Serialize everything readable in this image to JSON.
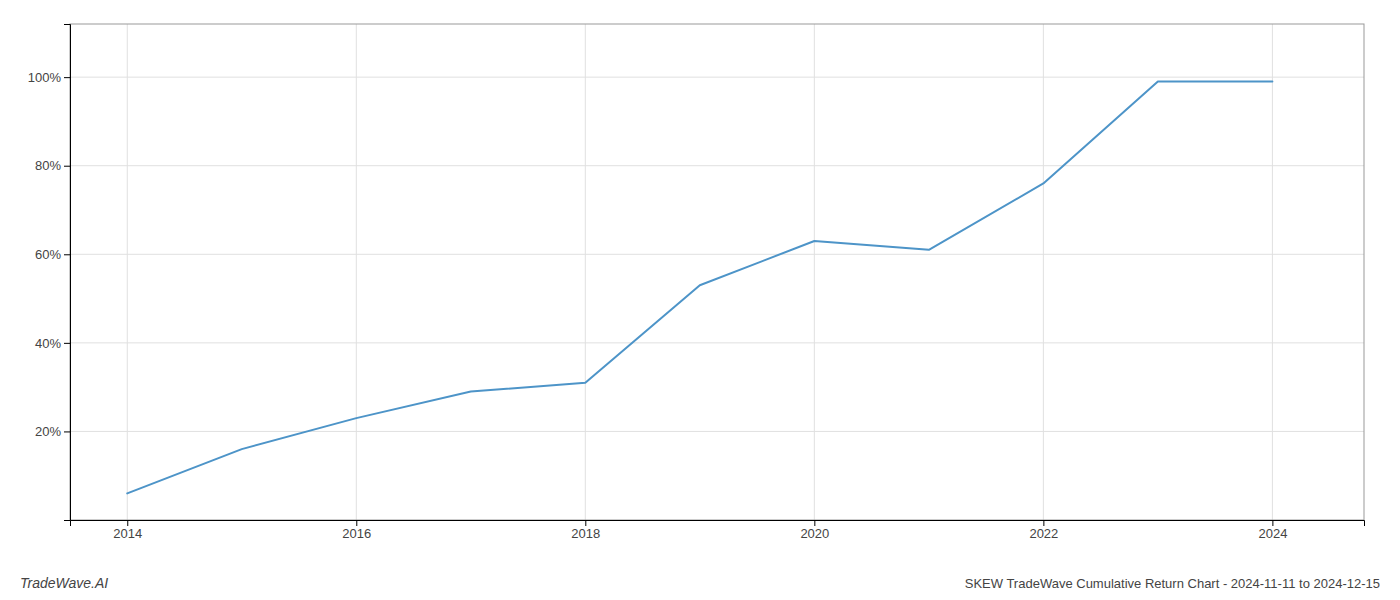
{
  "chart_data": {
    "type": "line",
    "title": "SKEW TradeWave Cumulative Return Chart - 2024-11-11 to 2024-12-15",
    "annotations": [
      "TradeWave.AI"
    ],
    "x": [
      2014,
      2015,
      2016,
      2017,
      2018,
      2019,
      2020,
      2021,
      2022,
      2023,
      2024
    ],
    "values": [
      0.06,
      0.16,
      0.23,
      0.29,
      0.31,
      0.53,
      0.63,
      0.61,
      0.76,
      0.99,
      0.99
    ],
    "color": "#4d94c8",
    "xlim": [
      2013.5,
      2024.8
    ],
    "ylim": [
      0.0,
      1.12
    ],
    "xticks": [
      2014,
      2016,
      2018,
      2020,
      2022,
      2024
    ],
    "yticks": [
      {
        "value": 0.2,
        "label": "20%"
      },
      {
        "value": 0.4,
        "label": "40%"
      },
      {
        "value": 0.6,
        "label": "60%"
      },
      {
        "value": 0.8,
        "label": "80%"
      },
      {
        "value": 1.0,
        "label": "100%"
      }
    ],
    "grid": true
  }
}
